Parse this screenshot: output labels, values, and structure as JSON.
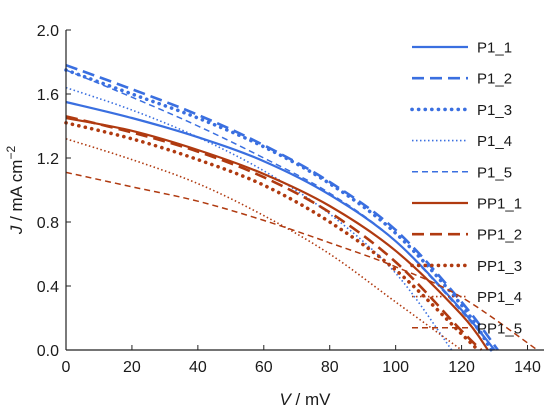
{
  "chart_data": {
    "type": "line",
    "title": "",
    "xlabel_var": "V",
    "xlabel_unit": " / mV",
    "ylabel_var": "J",
    "ylabel_unit": " / mA cm",
    "ylabel_sup": "−2",
    "xlim": [
      0,
      145
    ],
    "ylim": [
      0,
      2.0
    ],
    "xticks": [
      0,
      20,
      40,
      60,
      80,
      100,
      120,
      140
    ],
    "yticks": [
      0.0,
      0.4,
      0.8,
      1.2,
      1.6,
      2.0
    ],
    "xtick_labels": [
      "0",
      "20",
      "40",
      "60",
      "80",
      "100",
      "120",
      "140"
    ],
    "ytick_labels": [
      "0.0",
      "0.4",
      "0.8",
      "1.2",
      "1.6",
      "2.0"
    ],
    "grid": false,
    "legend_position": "top-right",
    "colors": {
      "p1": "#3a6fe0",
      "pp1": "#b03a10"
    },
    "series": [
      {
        "name": "P1_1",
        "color": "#3a6fe0",
        "style": "solid",
        "x": [
          0,
          20,
          40,
          60,
          80,
          100,
          120,
          130
        ],
        "y": [
          1.55,
          1.45,
          1.33,
          1.18,
          0.97,
          0.68,
          0.25,
          0.0
        ]
      },
      {
        "name": "P1_2",
        "color": "#3a6fe0",
        "style": "longdash",
        "x": [
          0,
          20,
          40,
          60,
          80,
          100,
          120,
          131
        ],
        "y": [
          1.78,
          1.63,
          1.47,
          1.28,
          1.05,
          0.75,
          0.3,
          0.0
        ]
      },
      {
        "name": "P1_3",
        "color": "#3a6fe0",
        "style": "dot",
        "x": [
          0,
          20,
          40,
          60,
          80,
          100,
          120,
          129
        ],
        "y": [
          1.75,
          1.6,
          1.45,
          1.27,
          1.04,
          0.73,
          0.28,
          0.0
        ]
      },
      {
        "name": "P1_4",
        "color": "#3a6fe0",
        "style": "finedot",
        "x": [
          0,
          20,
          40,
          60,
          80,
          100,
          117
        ],
        "y": [
          1.64,
          1.5,
          1.33,
          1.12,
          0.85,
          0.48,
          0.0
        ]
      },
      {
        "name": "P1_5",
        "color": "#3a6fe0",
        "style": "dash",
        "x": [
          0,
          20,
          40,
          60,
          80,
          100,
          120,
          130
        ],
        "y": [
          1.75,
          1.58,
          1.4,
          1.2,
          0.98,
          0.68,
          0.24,
          0.0
        ]
      },
      {
        "name": "PP1_1",
        "color": "#b03a10",
        "style": "solid",
        "x": [
          0,
          20,
          40,
          60,
          80,
          100,
          120,
          128
        ],
        "y": [
          1.45,
          1.37,
          1.25,
          1.1,
          0.9,
          0.62,
          0.22,
          0.0
        ]
      },
      {
        "name": "PP1_2",
        "color": "#b03a10",
        "style": "longdash",
        "x": [
          0,
          20,
          40,
          60,
          80,
          100,
          120,
          126
        ],
        "y": [
          1.46,
          1.36,
          1.24,
          1.08,
          0.86,
          0.55,
          0.12,
          0.0
        ]
      },
      {
        "name": "PP1_3",
        "color": "#b03a10",
        "style": "dot",
        "x": [
          0,
          20,
          40,
          60,
          80,
          100,
          120,
          125
        ],
        "y": [
          1.42,
          1.32,
          1.19,
          1.03,
          0.8,
          0.5,
          0.1,
          0.0
        ]
      },
      {
        "name": "PP1_4",
        "color": "#b03a10",
        "style": "finedot",
        "x": [
          0,
          20,
          40,
          60,
          80,
          100,
          120
        ],
        "y": [
          1.32,
          1.19,
          1.04,
          0.84,
          0.6,
          0.3,
          0.0
        ]
      },
      {
        "name": "PP1_5",
        "color": "#b03a10",
        "style": "dash",
        "x": [
          0,
          20,
          40,
          60,
          80,
          100,
          120,
          143
        ],
        "y": [
          1.11,
          1.02,
          0.93,
          0.81,
          0.67,
          0.52,
          0.33,
          0.0
        ]
      }
    ]
  }
}
